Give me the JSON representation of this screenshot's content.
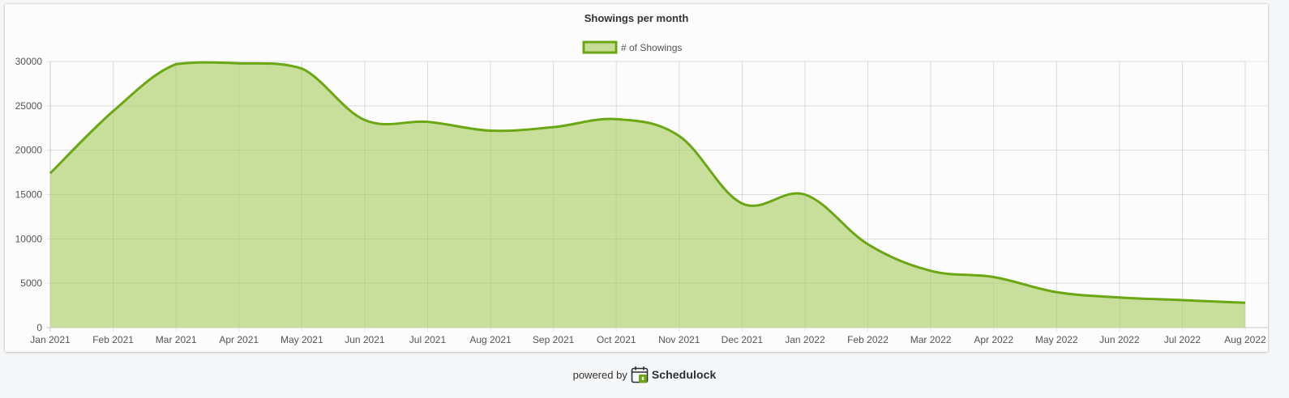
{
  "chart_data": {
    "type": "area",
    "title": "Showings per month",
    "categories": [
      "Jan 2021",
      "Feb 2021",
      "Mar 2021",
      "Apr 2021",
      "May 2021",
      "Jun 2021",
      "Jul 2021",
      "Aug 2021",
      "Sep 2021",
      "Oct 2021",
      "Nov 2021",
      "Dec 2021",
      "Jan 2022",
      "Feb 2022",
      "Mar 2022",
      "Apr 2022",
      "May 2022",
      "Jun 2022",
      "Jul 2022",
      "Aug 2022"
    ],
    "series": [
      {
        "name": "# of Showings",
        "values": [
          17400,
          24400,
          29700,
          29800,
          29200,
          23400,
          23200,
          22200,
          22600,
          23500,
          21600,
          14000,
          15000,
          9400,
          6400,
          5700,
          4000,
          3400,
          3100,
          2800
        ],
        "line_color": "#6aa712",
        "fill_color": "#c5dc96"
      }
    ],
    "ylim": [
      0,
      30000
    ],
    "yticks": [
      0,
      5000,
      10000,
      15000,
      20000,
      25000,
      30000
    ],
    "grid": true,
    "legend_position": "top-center"
  },
  "footer": {
    "powered_by": "powered by",
    "brand": "Schedulock"
  }
}
